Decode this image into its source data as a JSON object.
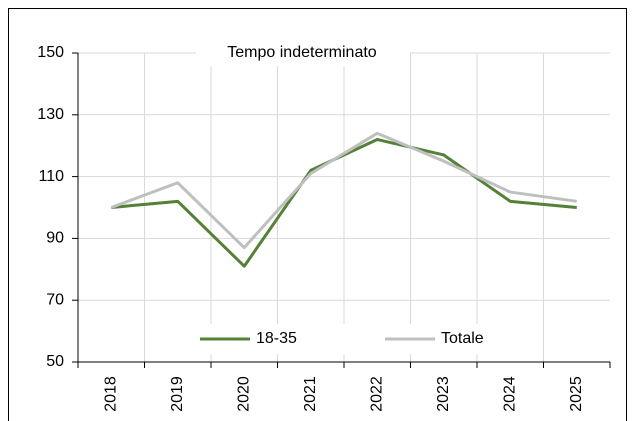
{
  "chart_data": {
    "type": "line",
    "title": "Tempo indeterminato",
    "categories": [
      "2018",
      "2019",
      "2020",
      "2021",
      "2022",
      "2023",
      "2024",
      "2025"
    ],
    "series": [
      {
        "name": "18-35",
        "color": "#538135",
        "values": [
          100,
          102,
          81,
          112,
          122,
          117,
          102,
          100
        ]
      },
      {
        "name": "Totale",
        "color": "#bfbfbf",
        "values": [
          100,
          108,
          87,
          111,
          124,
          115,
          105,
          102
        ]
      }
    ],
    "ylim": [
      50,
      150
    ],
    "yticks": [
      50,
      70,
      90,
      110,
      130,
      150
    ],
    "grid": true,
    "legend": "bottom"
  }
}
